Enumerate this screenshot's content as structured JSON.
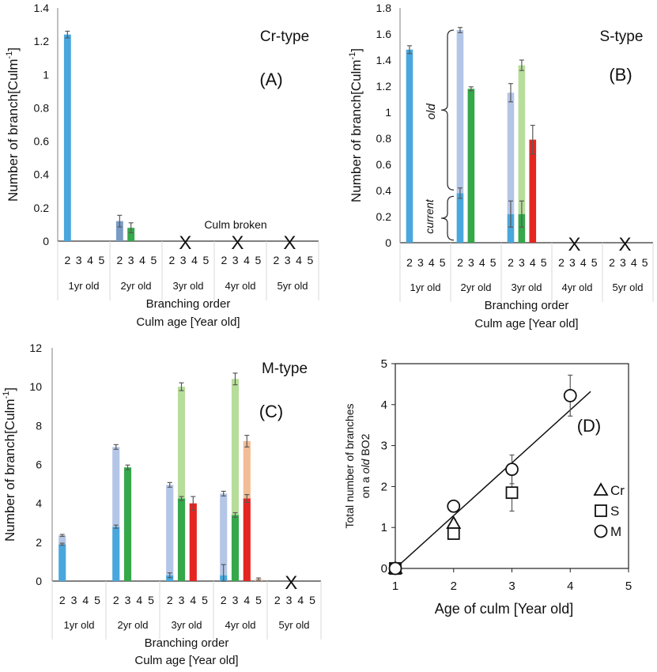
{
  "colors": {
    "bo2": "#4aa7dd",
    "bo2_old": "#b4c6e7",
    "bo3": "#35a84a",
    "bo3_old": "#b7dd9b",
    "bo4": "#e52520",
    "bo4_old": "#f2bd95",
    "bo2_cr_2yr": "#7a9bc3",
    "axis": "#808080",
    "grid": "#d9d9d9",
    "errorbar": "#595959"
  },
  "chart_data": [
    {
      "panel": "A",
      "type": "bar",
      "stacked": true,
      "title": "Cr-type",
      "panel_label": "(A)",
      "ylabel": "Number of branch[Culm-1]",
      "ylabel_main": "Number of branch[Culm",
      "ylabel_sup": "-1",
      "ylabel_end": "]",
      "xlabel": "Branching order",
      "xlabel2": "Culm age [Year old]",
      "ylim": [
        0,
        1.4
      ],
      "yticks": [
        "0",
        "0.2",
        "0.4",
        "0.6",
        "0.8",
        "1",
        "1.2",
        "1.4"
      ],
      "groups": [
        "1yr old",
        "2yr old",
        "3yr old",
        "4yr old",
        "5yr old"
      ],
      "branch_orders": [
        "2",
        "3",
        "4",
        "5"
      ],
      "annotation": "Culm broken",
      "broken_marks": [
        {
          "group": 2,
          "label": "X"
        },
        {
          "group": 3,
          "label": "X"
        },
        {
          "group": 4,
          "label": "X"
        }
      ],
      "bars": [
        {
          "group": 0,
          "order": "2",
          "current": 1.24,
          "old": 0,
          "err": 0.02,
          "color": "bo2"
        },
        {
          "group": 1,
          "order": "2",
          "current": 0.12,
          "old": 0,
          "err": 0.035,
          "color": "bo2_cr_2yr"
        },
        {
          "group": 1,
          "order": "3",
          "current": 0.08,
          "old": 0,
          "err": 0.03,
          "color": "bo3"
        }
      ]
    },
    {
      "panel": "B",
      "type": "bar",
      "stacked": true,
      "title": "S-type",
      "panel_label": "(B)",
      "ylabel": "Number of branch[Culm-1]",
      "ylabel_main": "Number of branch[Culm",
      "ylabel_sup": "-1",
      "ylabel_end": "]",
      "xlabel": "Branching order",
      "xlabel2": "Culm age [Year old]",
      "ylim": [
        0,
        1.8
      ],
      "yticks": [
        "0",
        "0.2",
        "0.4",
        "0.6",
        "0.8",
        "1",
        "1.2",
        "1.4",
        "1.6",
        "1.8"
      ],
      "groups": [
        "1yr old",
        "2yr old",
        "3yr old",
        "4yr old",
        "5yr old"
      ],
      "branch_orders": [
        "2",
        "3",
        "4",
        "5"
      ],
      "brace_labels": {
        "old": "old",
        "current": "current"
      },
      "broken_marks": [
        {
          "group": 3,
          "label": "X"
        },
        {
          "group": 4,
          "label": "X"
        }
      ],
      "bars": [
        {
          "group": 0,
          "order": "2",
          "current": 1.48,
          "old": 0,
          "err": 0.03,
          "color": "bo2"
        },
        {
          "group": 1,
          "order": "2",
          "current": 0.38,
          "old": 1.25,
          "err_current": 0.04,
          "err": 0.02,
          "color": "bo2"
        },
        {
          "group": 1,
          "order": "3",
          "current": 1.18,
          "old": 0,
          "err": 0.015,
          "color": "bo3"
        },
        {
          "group": 2,
          "order": "2",
          "current": 0.22,
          "old": 0.93,
          "err_current": 0.1,
          "err": 0.07,
          "color": "bo2"
        },
        {
          "group": 2,
          "order": "3",
          "current": 0.22,
          "old": 1.14,
          "err_current": 0.1,
          "err": 0.04,
          "color": "bo3"
        },
        {
          "group": 2,
          "order": "4",
          "current": 0.79,
          "old": 0,
          "err": 0.11,
          "color": "bo4"
        }
      ]
    },
    {
      "panel": "C",
      "type": "bar",
      "stacked": true,
      "title": "M-type",
      "panel_label": "(C)",
      "ylabel": "Number of branch[Culm-1]",
      "ylabel_main": "Number of branch[Culm",
      "ylabel_sup": "-1",
      "ylabel_end": "]",
      "xlabel": "Branching order",
      "xlabel2": "Culm age [Year old]",
      "ylim": [
        0,
        12
      ],
      "yticks": [
        "0",
        "2",
        "4",
        "6",
        "8",
        "10",
        "12"
      ],
      "groups": [
        "1yr old",
        "2yr old",
        "3yr old",
        "4yr old",
        "5yr old"
      ],
      "branch_orders": [
        "2",
        "3",
        "4",
        "5"
      ],
      "broken_marks": [
        {
          "group": 4,
          "label": "X"
        }
      ],
      "bars": [
        {
          "group": 0,
          "order": "2",
          "current": 1.9,
          "old": 0.45,
          "err_current": 0.05,
          "err": 0.05,
          "color": "bo2"
        },
        {
          "group": 1,
          "order": "2",
          "current": 2.8,
          "old": 4.1,
          "err_current": 0.08,
          "err": 0.12,
          "color": "bo2"
        },
        {
          "group": 1,
          "order": "3",
          "current": 5.85,
          "old": 0,
          "err": 0.12,
          "color": "bo3"
        },
        {
          "group": 2,
          "order": "2",
          "current": 0.3,
          "old": 4.65,
          "err_current": 0.12,
          "err": 0.12,
          "color": "bo2"
        },
        {
          "group": 2,
          "order": "3",
          "current": 4.25,
          "old": 5.75,
          "err_current": 0.1,
          "err": 0.2,
          "color": "bo3"
        },
        {
          "group": 2,
          "order": "4",
          "current": 4.0,
          "old": 0,
          "err": 0.35,
          "color": "bo4"
        },
        {
          "group": 3,
          "order": "2",
          "current": 0.3,
          "old": 4.2,
          "err_current": 0.55,
          "err": 0.12,
          "color": "bo2"
        },
        {
          "group": 3,
          "order": "3",
          "current": 3.4,
          "old": 7.0,
          "err_current": 0.12,
          "err": 0.3,
          "color": "bo3"
        },
        {
          "group": 3,
          "order": "4",
          "current": 4.25,
          "old": 2.95,
          "err_current": 0.2,
          "err": 0.3,
          "color": "bo4"
        },
        {
          "group": 3,
          "order": "5",
          "current": 0.1,
          "old": 0,
          "err": 0.06,
          "color": "bo4_old"
        }
      ]
    },
    {
      "panel": "D",
      "type": "scatter",
      "panel_label": "(D)",
      "ylabel_line1": "Total number of branches",
      "ylabel_line2_pre": "on a ",
      "ylabel_line2_em": "old",
      "ylabel_line2_post": " BO2",
      "xlabel": "Age of culm [Year old]",
      "xlim": [
        1,
        5
      ],
      "ylim": [
        0,
        5
      ],
      "xticks": [
        "1",
        "2",
        "3",
        "4",
        "5"
      ],
      "yticks": [
        "0",
        "1",
        "2",
        "3",
        "4",
        "5"
      ],
      "legend": [
        {
          "marker": "triangle",
          "label": "Cr"
        },
        {
          "marker": "square",
          "label": "S"
        },
        {
          "marker": "circle",
          "label": "M"
        }
      ],
      "series": [
        {
          "name": "Cr",
          "marker": "triangle",
          "points": [
            {
              "x": 1,
              "y": 0
            },
            {
              "x": 2,
              "y": 1.1,
              "err": 0.1
            }
          ]
        },
        {
          "name": "S",
          "marker": "square",
          "points": [
            {
              "x": 1,
              "y": 0
            },
            {
              "x": 2,
              "y": 0.85
            },
            {
              "x": 3,
              "y": 1.85,
              "err": 0.45
            }
          ]
        },
        {
          "name": "M",
          "marker": "circle",
          "points": [
            {
              "x": 1,
              "y": 0
            },
            {
              "x": 2,
              "y": 1.52,
              "err": 0.1
            },
            {
              "x": 3,
              "y": 2.42,
              "err": 0.35
            },
            {
              "x": 4,
              "y": 4.22,
              "err": 0.5
            }
          ]
        }
      ],
      "trendline": {
        "x": [
          1,
          4.35
        ],
        "y": [
          0,
          4.32
        ]
      }
    }
  ]
}
